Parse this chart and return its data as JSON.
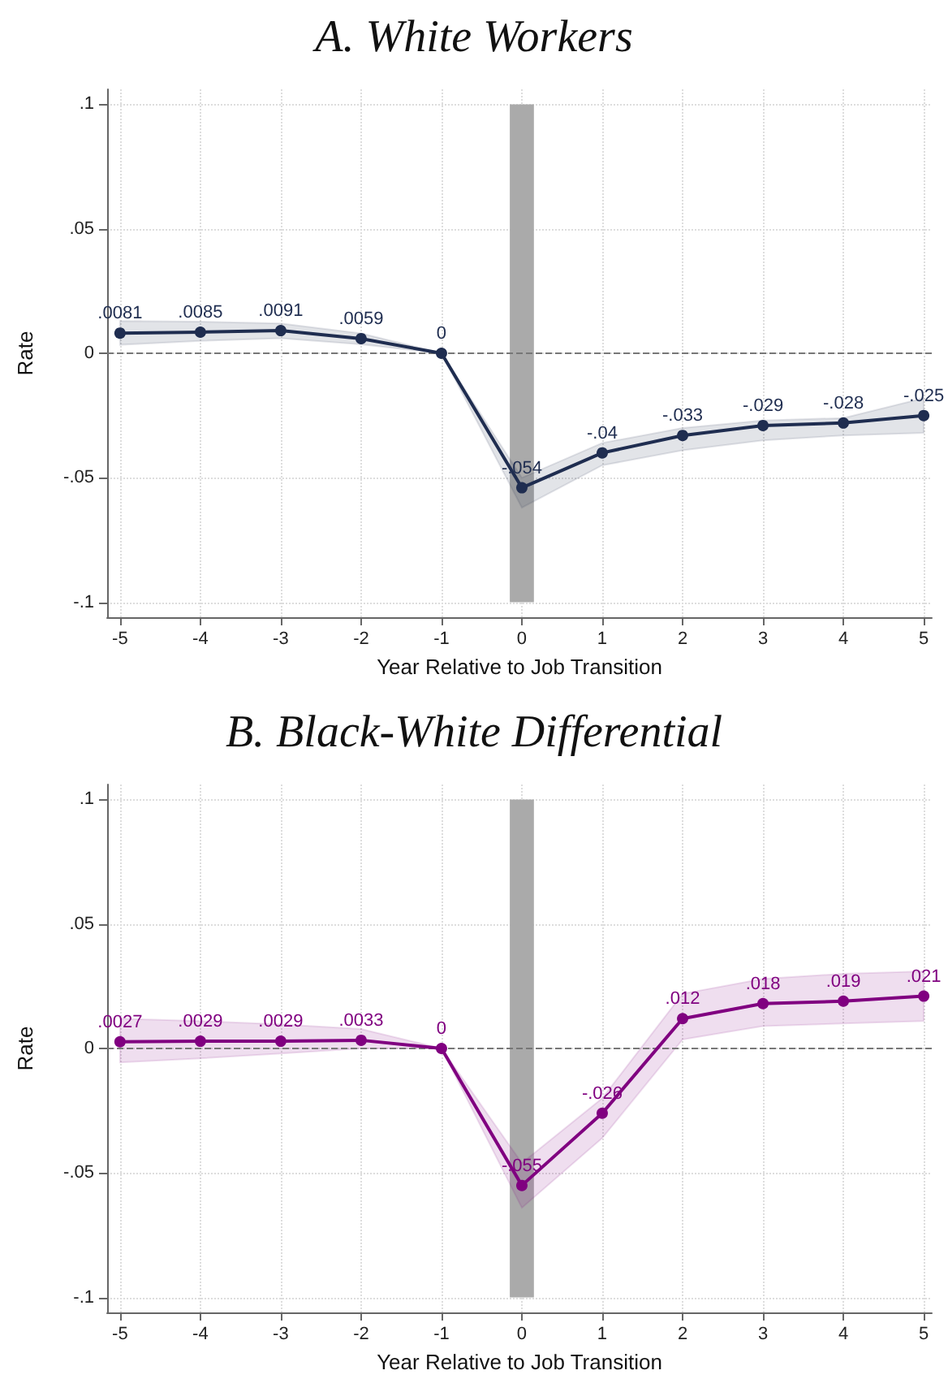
{
  "chart_data": [
    {
      "type": "line",
      "title": "A. White Workers",
      "xlabel": "Year Relative to Job Transition",
      "ylabel": "Rate",
      "x": [
        -5,
        -4,
        -3,
        -2,
        -1,
        0,
        1,
        2,
        3,
        4,
        5
      ],
      "series": [
        {
          "color": "#1f2d50",
          "values": [
            0.0081,
            0.0085,
            0.0091,
            0.0059,
            0,
            -0.054,
            -0.04,
            -0.033,
            -0.029,
            -0.028,
            -0.025
          ],
          "lower": [
            0.0034,
            0.005,
            0.006,
            0.0036,
            0,
            -0.062,
            -0.045,
            -0.039,
            -0.035,
            -0.033,
            -0.032
          ],
          "upper": [
            0.013,
            0.0127,
            0.012,
            0.008,
            0,
            -0.05,
            -0.036,
            -0.03,
            -0.027,
            -0.026,
            -0.018
          ],
          "value_labels": [
            ".0081",
            ".0085",
            ".0091",
            ".0059",
            "0",
            "-.054",
            "-.04",
            "-.033",
            "-.029",
            "-.028",
            "-.025"
          ]
        }
      ],
      "xlim": [
        -5.16,
        5.1
      ],
      "xticks": [
        -5,
        -4,
        -3,
        -2,
        -1,
        0,
        1,
        2,
        3,
        4,
        5
      ],
      "ylim": [
        -0.106,
        0.106
      ],
      "yticks": [
        {
          "value": -0.1,
          "label": "-.1"
        },
        {
          "value": -0.05,
          "label": "-.05"
        },
        0,
        {
          "value": 0.05,
          "label": ".05"
        },
        {
          "value": 0.1,
          "label": ".1"
        }
      ],
      "ref_lines": [
        {
          "axis": "y",
          "value": 0,
          "color": "#777777",
          "line_style": "dashed"
        }
      ],
      "bands": [
        {
          "axis": "x",
          "from": -0.15,
          "to": 0.15,
          "color": "#aaaaaa"
        }
      ],
      "grid": true,
      "marker": "circle",
      "line_style": "solid"
    },
    {
      "type": "line",
      "title": "B. Black-White Differential",
      "xlabel": "Year Relative to Job Transition",
      "ylabel": "Rate",
      "x": [
        -5,
        -4,
        -3,
        -2,
        -1,
        0,
        1,
        2,
        3,
        4,
        5
      ],
      "series": [
        {
          "color": "#800080",
          "values": [
            0.0027,
            0.0029,
            0.0029,
            0.0033,
            0,
            -0.055,
            -0.026,
            0.012,
            0.018,
            0.019,
            0.021
          ],
          "lower": [
            -0.0056,
            -0.004,
            -0.002,
            0,
            0,
            -0.064,
            -0.036,
            0.0036,
            0.009,
            0.01,
            0.011
          ],
          "upper": [
            0.012,
            0.011,
            0.0097,
            0.0078,
            0,
            -0.046,
            -0.02,
            0.022,
            0.028,
            0.03,
            0.031
          ],
          "value_labels": [
            ".0027",
            ".0029",
            ".0029",
            ".0033",
            "0",
            "-.055",
            "-.026",
            ".012",
            ".018",
            ".019",
            ".021"
          ]
        }
      ],
      "xlim": [
        -5.16,
        5.1
      ],
      "xticks": [
        -5,
        -4,
        -3,
        -2,
        -1,
        0,
        1,
        2,
        3,
        4,
        5
      ],
      "ylim": [
        -0.106,
        0.106
      ],
      "yticks": [
        {
          "value": -0.1,
          "label": "-.1"
        },
        {
          "value": -0.05,
          "label": "-.05"
        },
        0,
        {
          "value": 0.05,
          "label": ".05"
        },
        {
          "value": 0.1,
          "label": ".1"
        }
      ],
      "ref_lines": [
        {
          "axis": "y",
          "value": 0,
          "color": "#777777",
          "line_style": "dashed"
        }
      ],
      "bands": [
        {
          "axis": "x",
          "from": -0.15,
          "to": 0.15,
          "color": "#aaaaaa"
        }
      ],
      "grid": true,
      "marker": "circle",
      "line_style": "solid"
    }
  ]
}
